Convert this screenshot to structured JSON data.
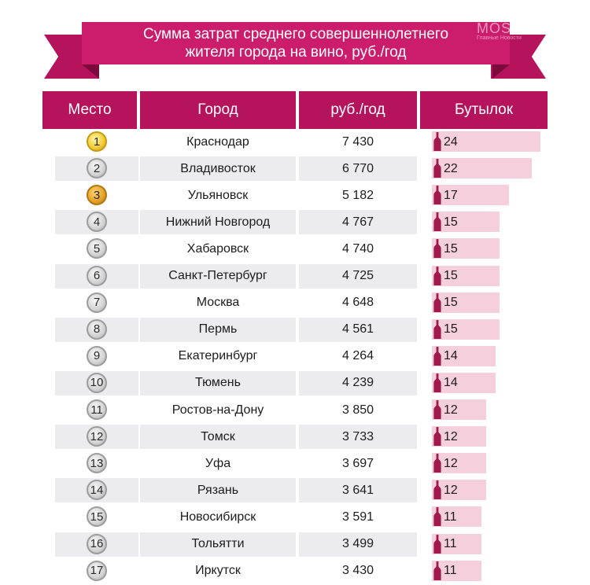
{
  "title": {
    "line1": "Сумма затрат среднего совершеннолетнего",
    "line2": "жителя города на вино, руб./год"
  },
  "watermark": {
    "brand": "MOS",
    "tagline": "Главные Новости"
  },
  "colors": {
    "ribbon": "#cc1c6c",
    "header": "#b5145c",
    "bar": "#f5cfdc",
    "bottle": "#a01a4e",
    "band": "#ececee"
  },
  "chart_data": {
    "type": "table",
    "columns": [
      "Место",
      "Город",
      "руб./год",
      "Бутылок"
    ],
    "rows": [
      {
        "rank": "1",
        "city": "Краснодар",
        "rub": "7 430",
        "bottles": 24
      },
      {
        "rank": "2",
        "city": "Владивосток",
        "rub": "6 770",
        "bottles": 22
      },
      {
        "rank": "3",
        "city": "Ульяновск",
        "rub": "5 182",
        "bottles": 17
      },
      {
        "rank": "4",
        "city": "Нижний Новгород",
        "rub": "4 767",
        "bottles": 15
      },
      {
        "rank": "5",
        "city": "Хабаровск",
        "rub": "4 740",
        "bottles": 15
      },
      {
        "rank": "6",
        "city": "Санкт-Петербург",
        "rub": "4 725",
        "bottles": 15
      },
      {
        "rank": "7",
        "city": "Москва",
        "rub": "4 648",
        "bottles": 15
      },
      {
        "rank": "8",
        "city": "Пермь",
        "rub": "4 561",
        "bottles": 15
      },
      {
        "rank": "9",
        "city": "Екатеринбург",
        "rub": "4 264",
        "bottles": 14
      },
      {
        "rank": "10",
        "city": "Тюмень",
        "rub": "4 239",
        "bottles": 14
      },
      {
        "rank": "11",
        "city": "Ростов-на-Дону",
        "rub": "3 850",
        "bottles": 12
      },
      {
        "rank": "12",
        "city": "Томск",
        "rub": "3 733",
        "bottles": 12
      },
      {
        "rank": "13",
        "city": "Уфа",
        "rub": "3 697",
        "bottles": 12
      },
      {
        "rank": "14",
        "city": "Рязань",
        "rub": "3 641",
        "bottles": 12
      },
      {
        "rank": "15",
        "city": "Новосибирск",
        "rub": "3 591",
        "bottles": 11
      },
      {
        "rank": "16",
        "city": "Тольятти",
        "rub": "3 499",
        "bottles": 11
      },
      {
        "rank": "17",
        "city": "Иркутск",
        "rub": "3 430",
        "bottles": 11
      }
    ],
    "medals": {
      "1": "gold",
      "2": "silver",
      "3": "bronze"
    }
  }
}
